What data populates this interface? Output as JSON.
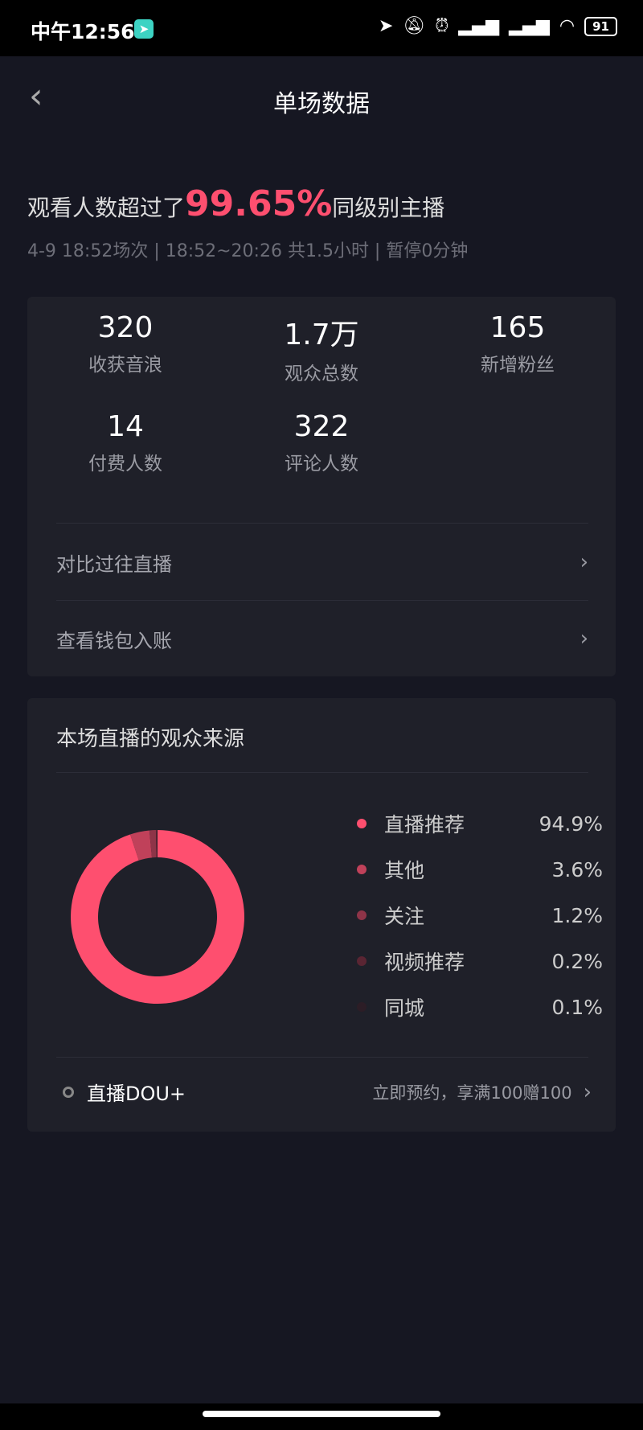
{
  "status_bar": {
    "time": "中午12:56",
    "battery": "91",
    "icons": [
      "location-icon",
      "mute-icon",
      "alarm-icon",
      "signal-hd-icon",
      "signal-icon",
      "wifi-icon",
      "battery-icon"
    ]
  },
  "header": {
    "title": "单场数据",
    "back_icon": "chevron-left-icon"
  },
  "summary": {
    "prefix": "观看人数超过了",
    "percent": "99.65%",
    "suffix": "同级别主播",
    "subtitle": "4-9 18:52场次 | 18:52~20:26 共1.5小时 | 暂停0分钟"
  },
  "stats": [
    {
      "value": "320",
      "label": "收获音浪"
    },
    {
      "value": "1.7万",
      "label": "观众总数"
    },
    {
      "value": "165",
      "label": "新增粉丝"
    },
    {
      "value": "14",
      "label": "付费人数"
    },
    {
      "value": "322",
      "label": "评论人数"
    }
  ],
  "links": [
    {
      "label": "对比过往直播"
    },
    {
      "label": "查看钱包入账"
    }
  ],
  "sources": {
    "title": "本场直播的观众来源",
    "chart_data": {
      "type": "pie",
      "donut": true,
      "categories": [
        "直播推荐",
        "其他",
        "关注",
        "视频推荐",
        "同城"
      ],
      "values": [
        94.9,
        3.6,
        1.2,
        0.2,
        0.1
      ],
      "labels": [
        "94.9%",
        "3.6%",
        "1.2%",
        "0.2%",
        "0.1%"
      ],
      "colors": [
        "#fe4f6f",
        "#c0415a",
        "#8e3448",
        "#5a2533",
        "#2c1d26"
      ]
    }
  },
  "dou": {
    "label": "直播DOU+",
    "promo": "立即预约，享满100赠100"
  },
  "colors": {
    "accent": "#fe4f6f",
    "background": "#161722",
    "card": "#1f2029"
  }
}
